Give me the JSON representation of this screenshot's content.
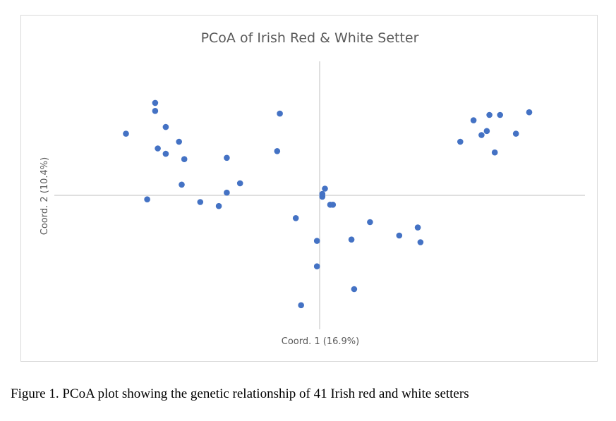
{
  "caption": "Figure 1. PCoA plot showing the genetic relationship of 41 Irish red and white setters",
  "colors": {
    "marker": "#4472c4",
    "axis": "#bfbfbf",
    "text": "#595959"
  },
  "chart_data": {
    "type": "scatter",
    "title": "PCoA of Irish Red & White Setter",
    "xlabel": "Coord. 1 (16.9%)",
    "ylabel": "Coord. 2 (10.4%)",
    "xlim": [
      -1,
      1
    ],
    "ylim": [
      -1,
      1
    ],
    "grid": false,
    "legend": "none",
    "series": [
      {
        "points": [
          [
            -0.73,
            0.46
          ],
          [
            -0.62,
            0.69
          ],
          [
            -0.62,
            0.63
          ],
          [
            -0.58,
            0.51
          ],
          [
            -0.61,
            0.35
          ],
          [
            -0.58,
            0.31
          ],
          [
            -0.53,
            0.4
          ],
          [
            -0.51,
            0.27
          ],
          [
            -0.52,
            0.08
          ],
          [
            -0.65,
            -0.03
          ],
          [
            -0.45,
            -0.05
          ],
          [
            -0.38,
            -0.08
          ],
          [
            -0.35,
            0.02
          ],
          [
            -0.3,
            0.09
          ],
          [
            -0.35,
            0.28
          ],
          [
            -0.15,
            0.61
          ],
          [
            -0.16,
            0.33
          ],
          [
            0.02,
            0.05
          ],
          [
            0.01,
            0.01
          ],
          [
            0.01,
            -0.01
          ],
          [
            0.04,
            -0.07
          ],
          [
            0.05,
            -0.07
          ],
          [
            -0.09,
            -0.17
          ],
          [
            -0.01,
            -0.34
          ],
          [
            -0.01,
            -0.53
          ],
          [
            -0.07,
            -0.82
          ],
          [
            0.12,
            -0.33
          ],
          [
            0.13,
            -0.7
          ],
          [
            0.19,
            -0.2
          ],
          [
            0.3,
            -0.3
          ],
          [
            0.37,
            -0.24
          ],
          [
            0.38,
            -0.35
          ],
          [
            0.53,
            0.4
          ],
          [
            0.58,
            0.56
          ],
          [
            0.61,
            0.45
          ],
          [
            0.63,
            0.48
          ],
          [
            0.64,
            0.6
          ],
          [
            0.66,
            0.32
          ],
          [
            0.68,
            0.6
          ],
          [
            0.74,
            0.46
          ],
          [
            0.79,
            0.62
          ]
        ]
      }
    ]
  }
}
